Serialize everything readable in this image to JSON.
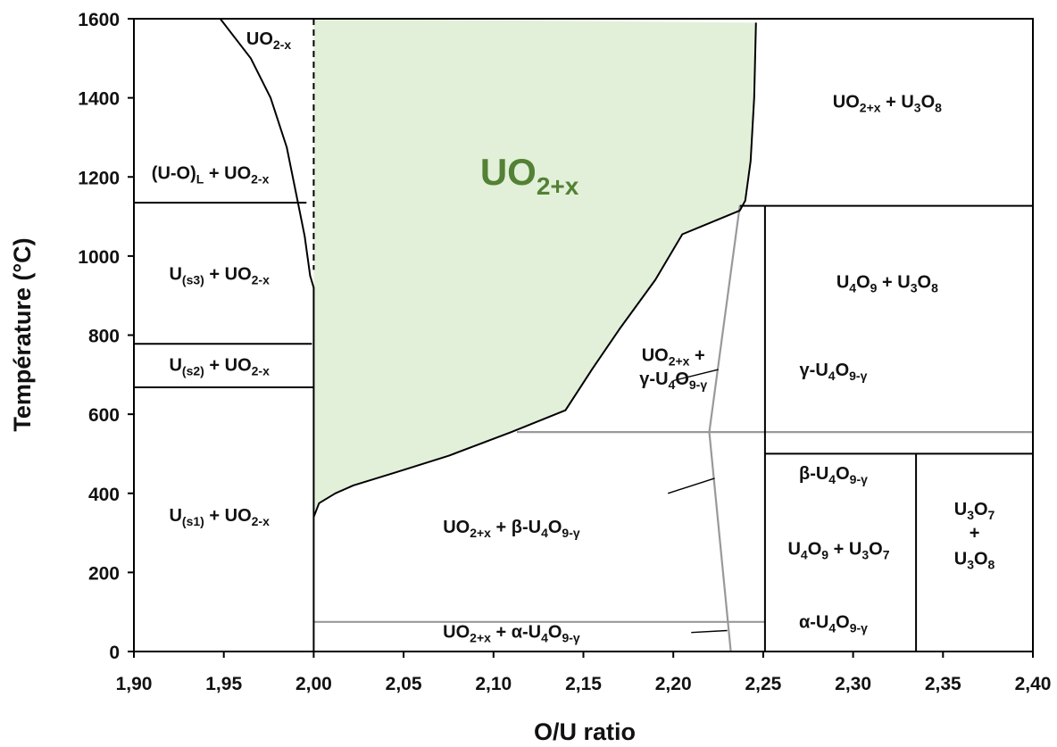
{
  "chart_data": {
    "type": "phase-diagram",
    "xlabel": "O/U ratio",
    "ylabel": "Température (°C)",
    "xlim": [
      1.9,
      2.4
    ],
    "ylim": [
      0,
      1600
    ],
    "x_ticks": [
      "1,90",
      "1,95",
      "2,00",
      "2,05",
      "2,10",
      "2,15",
      "2,20",
      "2,25",
      "2,30",
      "2,35",
      "2,40"
    ],
    "y_ticks": [
      "0",
      "200",
      "400",
      "600",
      "800",
      "1000",
      "1200",
      "1400",
      "1600"
    ],
    "highlight_color": "#e2f0d9",
    "highlight_label_color": "#538135",
    "boundary_color": "#000000",
    "secondary_boundary_color": "#999999",
    "highlight_region": {
      "name": "UO2+x",
      "boundary": [
        [
          2.0,
          1600
        ],
        [
          2.0,
          340
        ],
        [
          2.003,
          375
        ],
        [
          2.012,
          400
        ],
        [
          2.022,
          420
        ],
        [
          2.045,
          452
        ],
        [
          2.075,
          495
        ],
        [
          2.11,
          555
        ],
        [
          2.14,
          610
        ],
        [
          2.155,
          715
        ],
        [
          2.17,
          815
        ],
        [
          2.19,
          940
        ],
        [
          2.205,
          1055
        ],
        [
          2.237,
          1115
        ],
        [
          2.24,
          1140
        ],
        [
          2.243,
          1240
        ],
        [
          2.245,
          1400
        ],
        [
          2.246,
          1590
        ]
      ]
    },
    "lines": {
      "liquidus_curve": [
        [
          1.948,
          1600
        ],
        [
          1.965,
          1500
        ],
        [
          1.976,
          1400
        ],
        [
          1.985,
          1275
        ],
        [
          1.991,
          1140
        ],
        [
          1.995,
          1050
        ],
        [
          1.998,
          950
        ],
        [
          2.0,
          920
        ],
        [
          2.0,
          0
        ]
      ],
      "uo2_x_dashed": [
        [
          2.0,
          1600
        ],
        [
          2.0,
          965
        ]
      ],
      "line_1135": [
        [
          1.9,
          1135
        ],
        [
          1.996,
          1135
        ]
      ],
      "line_775": [
        [
          1.9,
          778
        ],
        [
          1.999,
          778
        ]
      ],
      "line_665": [
        [
          1.9,
          668
        ],
        [
          2.0,
          668
        ]
      ],
      "line_1127_right": [
        [
          2.237,
          1127
        ],
        [
          2.4,
          1127
        ]
      ],
      "vertical_225": [
        [
          2.251,
          1127
        ],
        [
          2.251,
          0
        ]
      ],
      "line_500": [
        [
          2.251,
          500
        ],
        [
          2.4,
          500
        ]
      ],
      "vertical_2335": [
        [
          2.335,
          500
        ],
        [
          2.335,
          0
        ]
      ],
      "gray_555": [
        [
          2.113,
          555
        ],
        [
          2.4,
          555
        ]
      ],
      "gray_75": [
        [
          2.0,
          75
        ],
        [
          2.251,
          75
        ]
      ],
      "gray_slanted_upper": [
        [
          2.22,
          555
        ],
        [
          2.237,
          1127
        ]
      ],
      "gray_slanted_lower": [
        [
          2.22,
          555
        ],
        [
          2.232,
          0
        ]
      ],
      "pointer_gamma": [
        [
          2.2,
          685
        ],
        [
          2.225,
          713
        ]
      ],
      "pointer_beta": [
        [
          2.197,
          400
        ],
        [
          2.223,
          438
        ]
      ],
      "pointer_alpha": [
        [
          2.21,
          48
        ],
        [
          2.23,
          53
        ]
      ]
    },
    "labels": [
      {
        "id": "uo2x-top",
        "pos": [
          1.975,
          1535
        ],
        "parts": [
          [
            "UO",
            0
          ],
          [
            "2-x",
            1
          ]
        ]
      },
      {
        "id": "liquid",
        "pos": [
          1.9425,
          1195
        ],
        "parts": [
          [
            "(U-O)",
            0
          ],
          [
            "L",
            1
          ],
          [
            " + UO",
            0
          ],
          [
            "2-x",
            1
          ]
        ]
      },
      {
        "id": "us3",
        "pos": [
          1.9475,
          940
        ],
        "parts": [
          [
            "U",
            0
          ],
          [
            "(s3)",
            1
          ],
          [
            " + UO",
            0
          ],
          [
            "2-x",
            1
          ]
        ]
      },
      {
        "id": "us2",
        "pos": [
          1.9475,
          710
        ],
        "parts": [
          [
            "U",
            0
          ],
          [
            "(s2)",
            1
          ],
          [
            " + UO",
            0
          ],
          [
            "2-x",
            1
          ]
        ]
      },
      {
        "id": "us1",
        "pos": [
          1.9475,
          330
        ],
        "parts": [
          [
            "U",
            0
          ],
          [
            "(s1)",
            1
          ],
          [
            " + UO",
            0
          ],
          [
            "2-x",
            1
          ]
        ]
      },
      {
        "id": "uo2-beta",
        "pos": [
          2.11,
          300
        ],
        "parts": [
          [
            "UO",
            0
          ],
          [
            "2+x",
            1
          ],
          [
            " + β-U",
            0
          ],
          [
            "4",
            1
          ],
          [
            "O",
            0
          ],
          [
            "9-γ",
            1
          ]
        ]
      },
      {
        "id": "uo2-alpha",
        "pos": [
          2.11,
          35
        ],
        "parts": [
          [
            "UO",
            0
          ],
          [
            "2+x",
            1
          ],
          [
            " + α-U",
            0
          ],
          [
            "4",
            1
          ],
          [
            "O",
            0
          ],
          [
            "9-γ",
            1
          ]
        ]
      },
      {
        "id": "uo2-gamma-1",
        "pos": [
          2.2,
          735
        ],
        "parts": [
          [
            "UO",
            0
          ],
          [
            "2+x",
            1
          ],
          [
            " +",
            0
          ]
        ]
      },
      {
        "id": "uo2-gamma-2",
        "pos": [
          2.2,
          675
        ],
        "parts": [
          [
            "γ-U",
            0
          ],
          [
            "4",
            1
          ],
          [
            "O",
            0
          ],
          [
            "9-γ",
            1
          ]
        ]
      },
      {
        "id": "uo2x-u3o8",
        "pos": [
          2.319,
          1375
        ],
        "parts": [
          [
            "UO",
            0
          ],
          [
            "2+x",
            1
          ],
          [
            " + U",
            0
          ],
          [
            "3",
            1
          ],
          [
            "O",
            0
          ],
          [
            "8",
            1
          ]
        ]
      },
      {
        "id": "u4o9-u3o8",
        "pos": [
          2.319,
          920
        ],
        "parts": [
          [
            "U",
            0
          ],
          [
            "4",
            1
          ],
          [
            "O",
            0
          ],
          [
            "9",
            1
          ],
          [
            " + U",
            0
          ],
          [
            "3",
            1
          ],
          [
            "O",
            0
          ],
          [
            "8",
            1
          ]
        ]
      },
      {
        "id": "gamma-u4o9",
        "pos": [
          2.289,
          697
        ],
        "parts": [
          [
            "γ-U",
            0
          ],
          [
            "4",
            1
          ],
          [
            "O",
            0
          ],
          [
            "9-γ",
            1
          ]
        ]
      },
      {
        "id": "beta-u4o9",
        "pos": [
          2.289,
          435
        ],
        "parts": [
          [
            "β-U",
            0
          ],
          [
            "4",
            1
          ],
          [
            "O",
            0
          ],
          [
            "9-γ",
            1
          ]
        ]
      },
      {
        "id": "alpha-u4o9",
        "pos": [
          2.289,
          60
        ],
        "parts": [
          [
            "α-U",
            0
          ],
          [
            "4",
            1
          ],
          [
            "O",
            0
          ],
          [
            "9-γ",
            1
          ]
        ]
      },
      {
        "id": "u4o9-u3o7",
        "pos": [
          2.292,
          245
        ],
        "parts": [
          [
            "U",
            0
          ],
          [
            "4",
            1
          ],
          [
            "O",
            0
          ],
          [
            "9",
            1
          ],
          [
            " + U",
            0
          ],
          [
            "3",
            1
          ],
          [
            "O",
            0
          ],
          [
            "7",
            1
          ]
        ]
      },
      {
        "id": "u3o7",
        "pos": [
          2.3675,
          345
        ],
        "parts": [
          [
            "U",
            0
          ],
          [
            "3",
            1
          ],
          [
            "O",
            0
          ],
          [
            "7",
            1
          ]
        ]
      },
      {
        "id": "plus",
        "pos": [
          2.3675,
          285
        ],
        "parts": [
          [
            "+",
            0
          ]
        ]
      },
      {
        "id": "u3o8",
        "pos": [
          2.3675,
          220
        ],
        "parts": [
          [
            "U",
            0
          ],
          [
            "3",
            1
          ],
          [
            "O",
            0
          ],
          [
            "8",
            1
          ]
        ]
      }
    ],
    "highlight_label": {
      "pos": [
        2.12,
        1180
      ],
      "parts": [
        [
          "UO",
          0
        ],
        [
          "2+x",
          1
        ]
      ]
    }
  }
}
